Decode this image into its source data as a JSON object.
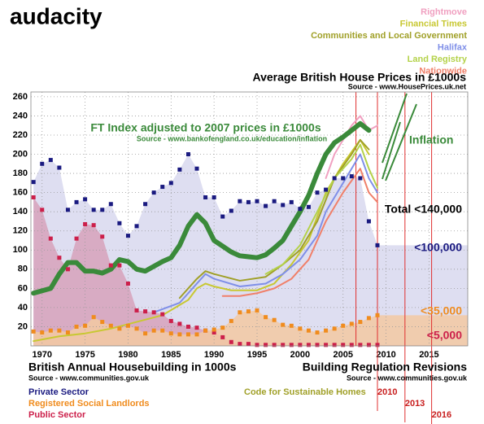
{
  "chart_data": {
    "type": "combo",
    "logo": "audacity",
    "title": "Average British House Prices in £1000s",
    "title_source": "Source - www.HousePrices.uk.net",
    "ft_source": "Source - www.bankofengland.co.uk/education/inflation",
    "inflation_label": "Inflation",
    "housebuilding_title": "British Annual Housebuilding in 1000s",
    "housebuilding_source": "Source - www.communities.gov.uk",
    "regulation_title": "Building Regulation Revisions",
    "regulation_source": "Source - www.communities.gov.uk",
    "code_label": "Code for Sustainable Homes",
    "band_labels": [
      "Total <140,000",
      "<100,000",
      "<35,000",
      "<5,000"
    ],
    "xlim": [
      1968.7,
      2019.5
    ],
    "ylim": [
      0,
      265
    ],
    "xticks": [
      1970,
      1975,
      1980,
      1985,
      1990,
      1995,
      2000,
      2005,
      2010,
      2015
    ],
    "yticks": [
      20,
      40,
      60,
      80,
      100,
      120,
      140,
      160,
      180,
      200,
      220,
      240,
      260
    ],
    "grid": true,
    "regulation_lines": [
      {
        "value": 2006.5
      },
      {
        "value": 2009,
        "label": "2010"
      },
      {
        "value": 2012.2,
        "label": "2013"
      },
      {
        "value": 2015.3,
        "label": "2016"
      }
    ],
    "x": [
      1969,
      1970,
      1971,
      1972,
      1973,
      1974,
      1975,
      1976,
      1977,
      1978,
      1979,
      1980,
      1981,
      1982,
      1983,
      1984,
      1985,
      1986,
      1987,
      1988,
      1989,
      1990,
      1991,
      1992,
      1993,
      1994,
      1995,
      1996,
      1997,
      1998,
      1999,
      2000,
      2001,
      2002,
      2003,
      2004,
      2005,
      2006,
      2007,
      2008,
      2009
    ],
    "housebuilding": [
      {
        "name": "Private Sector",
        "color": "#1a1a80",
        "area": "#d8d8ee",
        "values": [
          171,
          190,
          194,
          186,
          142,
          150,
          153,
          142,
          142,
          148,
          128,
          115,
          125,
          148,
          160,
          166,
          170,
          184,
          200,
          185,
          155,
          155,
          135,
          141,
          151,
          150,
          151,
          146,
          151,
          147,
          150,
          143,
          145,
          160,
          163,
          175,
          175,
          177,
          175,
          130,
          105
        ]
      },
      {
        "name": "Public Sector",
        "color": "#cc1f4a",
        "area": "#d7a2bb",
        "values": [
          155,
          142,
          112,
          92,
          80,
          112,
          127,
          126,
          114,
          84,
          84,
          65,
          37,
          36,
          35,
          33,
          26,
          23,
          20,
          19,
          16,
          14,
          9,
          4,
          2,
          2,
          1,
          1,
          1,
          1,
          1,
          1,
          1,
          1,
          1,
          1,
          1,
          1,
          1,
          1,
          1
        ]
      },
      {
        "name": "Registered Social Landlords",
        "color": "#f08c1e",
        "area": "#f3c9a2",
        "values": [
          15,
          14,
          16,
          16,
          14,
          20,
          21,
          30,
          25,
          21,
          18,
          21,
          18,
          13,
          16,
          16,
          13,
          12,
          12,
          12,
          16,
          17,
          19,
          26,
          35,
          36,
          37,
          30,
          27,
          22,
          21,
          18,
          16,
          14,
          16,
          18,
          21,
          23,
          25,
          29,
          32
        ]
      }
    ],
    "series": [
      {
        "name": "FT Index adjusted to 2007 prices in £1000s",
        "color": "#3a8a3a",
        "width": 6,
        "x": [
          1969,
          1971,
          1972,
          1973,
          1974,
          1975,
          1976,
          1977,
          1978,
          1979,
          1980,
          1981,
          1982,
          1983,
          1984,
          1985,
          1986,
          1987,
          1988,
          1989,
          1990,
          1991,
          1992,
          1993,
          1994,
          1995,
          1996,
          1997,
          1998,
          1999,
          2000,
          2001,
          2002,
          2003,
          2004,
          2005,
          2006,
          2007,
          2008
        ],
        "values": [
          55,
          60,
          75,
          87,
          87,
          78,
          78,
          76,
          80,
          90,
          88,
          80,
          78,
          83,
          88,
          92,
          105,
          125,
          137,
          128,
          110,
          104,
          98,
          94,
          93,
          92,
          95,
          102,
          110,
          125,
          140,
          157,
          180,
          200,
          212,
          218,
          225,
          232,
          225
        ]
      },
      {
        "name": "Rightmove",
        "color": "#f0a0c0",
        "width": 2,
        "x": [
          2003,
          2004,
          2005,
          2006,
          2007,
          2008,
          2009
        ],
        "values": [
          175,
          200,
          215,
          230,
          240,
          225,
          230
        ]
      },
      {
        "name": "Financial Times",
        "color": "#c8c832",
        "width": 2,
        "x": [
          1969,
          1972,
          1975,
          1978,
          1981,
          1984,
          1987,
          1988,
          1989,
          1990,
          1992,
          1995,
          1997,
          1999,
          2001,
          2003,
          2005,
          2007,
          2008
        ],
        "values": [
          5,
          10,
          13,
          18,
          25,
          32,
          48,
          60,
          65,
          62,
          58,
          58,
          65,
          85,
          110,
          160,
          190,
          215,
          200
        ]
      },
      {
        "name": "Communities and Local Government",
        "color": "#a0a028",
        "width": 2,
        "x": [
          1986,
          1988,
          1989,
          1990,
          1993,
          1996,
          1998,
          2000,
          2002,
          2004,
          2006,
          2007,
          2008
        ],
        "values": [
          50,
          70,
          78,
          75,
          68,
          72,
          85,
          100,
          130,
          175,
          200,
          215,
          205
        ]
      },
      {
        "name": "Halifax",
        "color": "#7f8fe8",
        "width": 2,
        "x": [
          1983,
          1986,
          1988,
          1989,
          1990,
          1993,
          1996,
          1998,
          2000,
          2002,
          2003,
          2005,
          2007,
          2008,
          2009
        ],
        "values": [
          35,
          45,
          65,
          75,
          70,
          62,
          65,
          75,
          90,
          115,
          140,
          170,
          200,
          175,
          160
        ]
      },
      {
        "name": "Land Registry",
        "color": "#b4d24a",
        "width": 2,
        "x": [
          1996,
          1998,
          2000,
          2002,
          2004,
          2006,
          2007,
          2008,
          2009
        ],
        "values": [
          75,
          85,
          105,
          140,
          175,
          195,
          210,
          185,
          165
        ]
      },
      {
        "name": "Nationwide",
        "color": "#f0806a",
        "width": 2,
        "x": [
          1991,
          1993,
          1995,
          1997,
          1999,
          2001,
          2003,
          2005,
          2007,
          2008,
          2009
        ],
        "values": [
          52,
          52,
          55,
          60,
          70,
          90,
          130,
          160,
          185,
          160,
          150
        ]
      }
    ]
  }
}
